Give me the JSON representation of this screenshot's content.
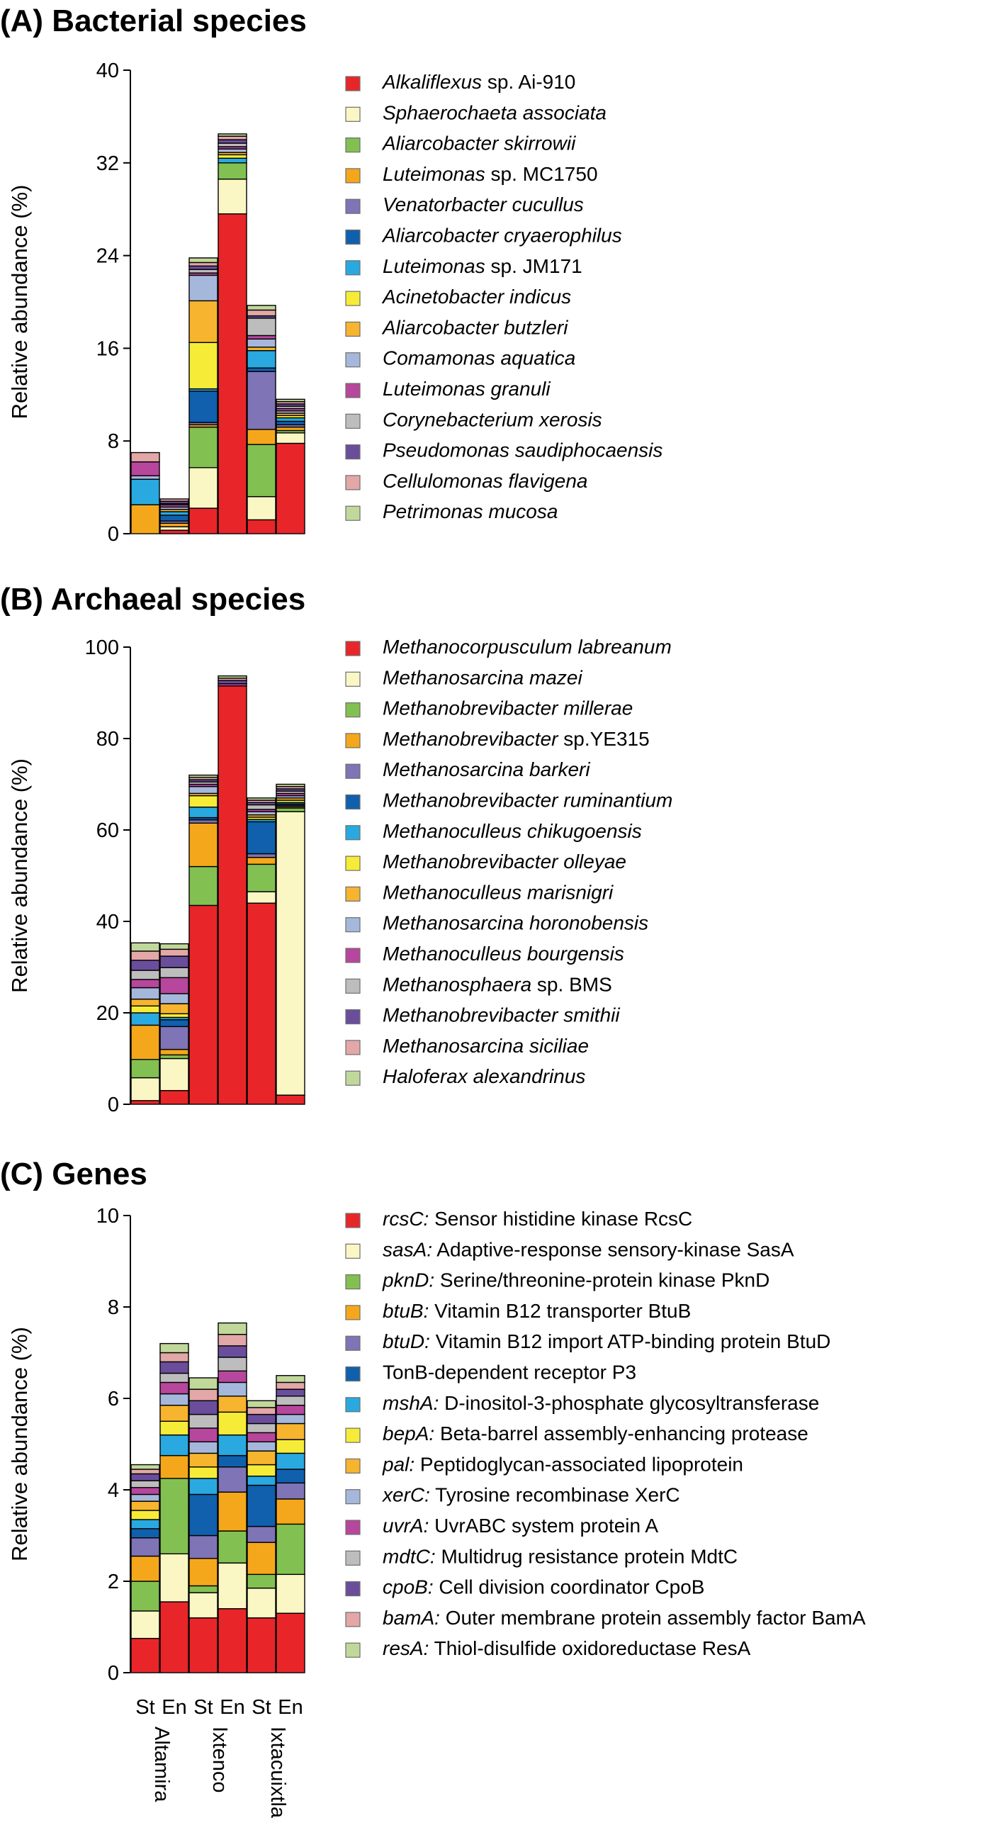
{
  "chart_data": [
    {
      "type": "bar",
      "stacked": true,
      "title": "(A) Bacterial species",
      "ylabel": "Relative abundance (%)",
      "ylim": [
        0,
        40
      ],
      "yticks": [
        "0",
        "8",
        "16",
        "24",
        "32",
        "40"
      ],
      "categories": [
        "Altamira St",
        "Altamira En",
        "Ixtenco St",
        "Ixtenco En",
        "Ixtacuixtla St",
        "Ixtacuixtla En"
      ],
      "series": [
        {
          "name": "Alkaliflexus sp. Ai-910",
          "label": [
            [
              "Alkaliflexus",
              true
            ],
            [
              " sp. Ai-910",
              false
            ]
          ],
          "color": "#e8262a",
          "values": [
            0,
            0.3,
            2.2,
            27.6,
            1.2,
            7.8
          ]
        },
        {
          "name": "Sphaerochaeta associata",
          "label": [
            [
              "Sphaerochaeta associata",
              true
            ]
          ],
          "color": "#fbf7c5",
          "values": [
            0,
            0.3,
            3.5,
            3.0,
            2.0,
            0.9
          ]
        },
        {
          "name": "Aliarcobacter skirrowii",
          "label": [
            [
              "Aliarcobacter skirrowii",
              true
            ]
          ],
          "color": "#82c151",
          "values": [
            0,
            0,
            3.5,
            1.4,
            4.5,
            0.2
          ]
        },
        {
          "name": "Luteimonas sp. MC1750",
          "label": [
            [
              "Luteimonas",
              true
            ],
            [
              " sp. MC1750",
              false
            ]
          ],
          "color": "#f5a71c",
          "values": [
            2.5,
            0.3,
            0.2,
            0,
            1.3,
            0.3
          ]
        },
        {
          "name": "Venatorbacter cucullus",
          "label": [
            [
              "Venatorbacter cucullus",
              true
            ]
          ],
          "color": "#7f74b6",
          "values": [
            0,
            0.2,
            0.2,
            0,
            5.0,
            0.2
          ]
        },
        {
          "name": "Aliarcobacter cryaerophilus",
          "label": [
            [
              "Aliarcobacter cryaerophilus",
              true
            ]
          ],
          "color": "#1060ad",
          "values": [
            0,
            0.5,
            2.7,
            0,
            0.3,
            0.3
          ]
        },
        {
          "name": "Luteimonas sp. JM171",
          "label": [
            [
              "Luteimonas",
              true
            ],
            [
              " sp. JM171",
              false
            ]
          ],
          "color": "#29a9e0",
          "values": [
            2.2,
            0.3,
            0.2,
            0.4,
            1.5,
            0.3
          ]
        },
        {
          "name": "Acinetobacter indicus",
          "label": [
            [
              "Acinetobacter indicus",
              true
            ]
          ],
          "color": "#f6ec38",
          "values": [
            0,
            0,
            4.0,
            0.3,
            0,
            0.2
          ]
        },
        {
          "name": "Aliarcobacter butzleri",
          "label": [
            [
              "Aliarcobacter butzleri",
              true
            ]
          ],
          "color": "#f7b42f",
          "values": [
            0,
            0.2,
            3.6,
            0.2,
            0.3,
            0.2
          ]
        },
        {
          "name": "Comamonas aquatica",
          "label": [
            [
              "Comamonas aquatica",
              true
            ]
          ],
          "color": "#a5b8dc",
          "values": [
            0.3,
            0.2,
            2.2,
            0.3,
            0.7,
            0.2
          ]
        },
        {
          "name": "Luteimonas granuli",
          "label": [
            [
              "Luteimonas granuli",
              true
            ]
          ],
          "color": "#b7479c",
          "values": [
            1.2,
            0.2,
            0.2,
            0.2,
            0.3,
            0.2
          ]
        },
        {
          "name": "Corynebacterium xerosis",
          "label": [
            [
              "Corynebacterium xerosis",
              true
            ]
          ],
          "color": "#bdbdbd",
          "values": [
            0,
            0.1,
            0.3,
            0.3,
            1.5,
            0.2
          ]
        },
        {
          "name": "Pseudomonas saudiphocaensis",
          "label": [
            [
              "Pseudomonas saudiphocaensis",
              true
            ]
          ],
          "color": "#6a4e9c",
          "values": [
            0,
            0.2,
            0.3,
            0.3,
            0.2,
            0.2
          ]
        },
        {
          "name": "Cellulomonas flavigena",
          "label": [
            [
              "Cellulomonas flavigena",
              true
            ]
          ],
          "color": "#e3a7a8",
          "values": [
            0.8,
            0.2,
            0.3,
            0.3,
            0.5,
            0.2
          ]
        },
        {
          "name": "Petrimonas mucosa",
          "label": [
            [
              "Petrimonas mucosa",
              true
            ]
          ],
          "color": "#c1d89b",
          "values": [
            0,
            0,
            0.4,
            0.2,
            0.4,
            0.2
          ]
        }
      ]
    },
    {
      "type": "bar",
      "stacked": true,
      "title": "(B) Archaeal species",
      "ylabel": "Relative abundance (%)",
      "ylim": [
        0,
        100
      ],
      "yticks": [
        "0",
        "20",
        "40",
        "60",
        "80",
        "100"
      ],
      "categories": [
        "Altamira St",
        "Altamira En",
        "Ixtenco St",
        "Ixtenco En",
        "Ixtacuixtla St",
        "Ixtacuixtla En"
      ],
      "series": [
        {
          "name": "Methanocorpusculum labreanum",
          "label": [
            [
              "Methanocorpusculum labreanum",
              true
            ]
          ],
          "color": "#e8262a",
          "values": [
            0.8,
            3,
            43.5,
            91.5,
            44,
            2
          ]
        },
        {
          "name": "Methanosarcina mazei",
          "label": [
            [
              "Methanosarcina mazei",
              true
            ]
          ],
          "color": "#fbf7c5",
          "values": [
            5,
            7,
            0,
            0,
            2.5,
            62
          ]
        },
        {
          "name": "Methanobrevibacter millerae",
          "label": [
            [
              "Methanobrevibacter millerae",
              true
            ]
          ],
          "color": "#82c151",
          "values": [
            4,
            0.8,
            8.5,
            0,
            6,
            0.8
          ]
        },
        {
          "name": "Methanobrevibacter sp.YE315",
          "label": [
            [
              "Methanobrevibacter",
              true
            ],
            [
              " sp.YE315",
              false
            ]
          ],
          "color": "#f5a71c",
          "values": [
            7.5,
            1.2,
            9.5,
            0,
            1.5,
            0.3
          ]
        },
        {
          "name": "Methanosarcina barkeri",
          "label": [
            [
              "Methanosarcina barkeri",
              true
            ]
          ],
          "color": "#7f74b6",
          "values": [
            0,
            5,
            0.7,
            0,
            0.8,
            0.3
          ]
        },
        {
          "name": "Methanobrevibacter ruminantium",
          "label": [
            [
              "Methanobrevibacter ruminantium",
              true
            ]
          ],
          "color": "#1060ad",
          "values": [
            0,
            1.5,
            0.5,
            0,
            7,
            0.3
          ]
        },
        {
          "name": "Methanoculleus chikugoensis",
          "label": [
            [
              "Methanoculleus chikugoensis",
              true
            ]
          ],
          "color": "#29a9e0",
          "values": [
            2.7,
            0.5,
            2.3,
            0,
            0.5,
            0.3
          ]
        },
        {
          "name": "Methanobrevibacter olleyae",
          "label": [
            [
              "Methanobrevibacter olleyae",
              true
            ]
          ],
          "color": "#f6ec38",
          "values": [
            1.5,
            0.8,
            2.5,
            0,
            0.5,
            0.5
          ]
        },
        {
          "name": "Methanoculleus marisnigri",
          "label": [
            [
              "Methanoculleus marisnigri",
              true
            ]
          ],
          "color": "#f7b42f",
          "values": [
            1.5,
            2.2,
            0.5,
            0,
            0.5,
            0.5
          ]
        },
        {
          "name": "Methanosarcina horonobensis",
          "label": [
            [
              "Methanosarcina horonobensis",
              true
            ]
          ],
          "color": "#a5b8dc",
          "values": [
            2.5,
            2.2,
            1.5,
            0,
            0.7,
            0.5
          ]
        },
        {
          "name": "Methanoculleus bourgensis",
          "label": [
            [
              "Methanoculleus bourgensis",
              true
            ]
          ],
          "color": "#b7479c",
          "values": [
            1.8,
            3.5,
            0.5,
            0.5,
            0.5,
            0.5
          ]
        },
        {
          "name": "Methanosphaera sp. BMS",
          "label": [
            [
              "Methanosphaera",
              true
            ],
            [
              " sp. BMS",
              false
            ]
          ],
          "color": "#bdbdbd",
          "values": [
            2,
            2.2,
            0.5,
            0,
            1,
            0.5
          ]
        },
        {
          "name": "Methanobrevibacter smithii",
          "label": [
            [
              "Methanobrevibacter smithii",
              true
            ]
          ],
          "color": "#6a4e9c",
          "values": [
            2.2,
            2.5,
            0.5,
            0.7,
            0.5,
            0.5
          ]
        },
        {
          "name": "Methanosarcina siciliae",
          "label": [
            [
              "Methanosarcina siciliae",
              true
            ]
          ],
          "color": "#e3a7a8",
          "values": [
            2,
            1.5,
            0.5,
            0.5,
            0.5,
            0.5
          ]
        },
        {
          "name": "Haloferax alexandrinus",
          "label": [
            [
              "Haloferax alexandrinus",
              true
            ]
          ],
          "color": "#c1d89b",
          "values": [
            1.8,
            1.2,
            0.5,
            0.5,
            0.5,
            0.5
          ]
        }
      ]
    },
    {
      "type": "bar",
      "stacked": true,
      "title": "(C) Genes",
      "ylabel": "Relative abundance (%)",
      "ylim": [
        0,
        10
      ],
      "yticks": [
        "0",
        "2",
        "4",
        "6",
        "8",
        "10"
      ],
      "categories": [
        "Altamira St",
        "Altamira En",
        "Ixtenco St",
        "Ixtenco En",
        "Ixtacuixtla St",
        "Ixtacuixtla En"
      ],
      "series": [
        {
          "name": "rcsC: Sensor histidine kinase RcsC",
          "label": [
            [
              "rcsC:",
              true
            ],
            [
              " Sensor histidine kinase RcsC",
              false
            ]
          ],
          "color": "#e8262a",
          "values": [
            0.75,
            1.55,
            1.2,
            1.4,
            1.2,
            1.3
          ]
        },
        {
          "name": "sasA: Adaptive-response sensory-kinase SasA",
          "label": [
            [
              "sasA:",
              true
            ],
            [
              " Adaptive-response sensory-kinase SasA",
              false
            ]
          ],
          "color": "#fbf7c5",
          "values": [
            0.6,
            1.05,
            0.55,
            1.0,
            0.65,
            0.85
          ]
        },
        {
          "name": "pknD: Serine/threonine-protein kinase PknD",
          "label": [
            [
              "pknD:",
              true
            ],
            [
              " Serine/threonine-protein kinase PknD",
              false
            ]
          ],
          "color": "#82c151",
          "values": [
            0.65,
            1.65,
            0.15,
            0.7,
            0.3,
            1.1
          ]
        },
        {
          "name": "btuB: Vitamin B12 transporter BtuB",
          "label": [
            [
              "btuB:",
              true
            ],
            [
              " Vitamin B12 transporter BtuB",
              false
            ]
          ],
          "color": "#f5a71c",
          "values": [
            0.55,
            0.5,
            0.6,
            0.85,
            0.7,
            0.55
          ]
        },
        {
          "name": "btuD: Vitamin B12 import ATP-binding protein BtuD",
          "label": [
            [
              "btuD:",
              true
            ],
            [
              " Vitamin B12 import ATP-binding protein BtuD",
              false
            ]
          ],
          "color": "#7f74b6",
          "values": [
            0.4,
            0,
            0.5,
            0.55,
            0.35,
            0.35
          ]
        },
        {
          "name": "TonB-dependent receptor P3",
          "label": [
            [
              "TonB-dependent receptor P3",
              false
            ]
          ],
          "color": "#1060ad",
          "values": [
            0.2,
            0,
            0.9,
            0.25,
            0.9,
            0.3
          ]
        },
        {
          "name": "mshA: D-inositol-3-phosphate glycosyltransferase",
          "label": [
            [
              "mshA:",
              true
            ],
            [
              " D-inositol-3-phosphate glycosyltransferase",
              false
            ]
          ],
          "color": "#29a9e0",
          "values": [
            0.2,
            0.45,
            0.35,
            0.45,
            0.2,
            0.35
          ]
        },
        {
          "name": "bepA: Beta-barrel assembly-enhancing protease",
          "label": [
            [
              "bepA:",
              true
            ],
            [
              " Beta-barrel assembly-enhancing protease",
              false
            ]
          ],
          "color": "#f6ec38",
          "values": [
            0.2,
            0.3,
            0.25,
            0.5,
            0.25,
            0.3
          ]
        },
        {
          "name": "pal: Peptidoglycan-associated lipoprotein",
          "label": [
            [
              "pal:",
              true
            ],
            [
              " Peptidoglycan-associated lipoprotein",
              false
            ]
          ],
          "color": "#f7b42f",
          "values": [
            0.2,
            0.35,
            0.3,
            0.35,
            0.3,
            0.35
          ]
        },
        {
          "name": "xerC: Tyrosine recombinase XerC",
          "label": [
            [
              "xerC:",
              true
            ],
            [
              " Tyrosine recombinase XerC",
              false
            ]
          ],
          "color": "#a5b8dc",
          "values": [
            0.15,
            0.25,
            0.25,
            0.3,
            0.2,
            0.2
          ]
        },
        {
          "name": "uvrA: UvrABC system protein A",
          "label": [
            [
              "uvrA:",
              true
            ],
            [
              " UvrABC system protein A",
              false
            ]
          ],
          "color": "#b7479c",
          "values": [
            0.15,
            0.25,
            0.3,
            0.25,
            0.2,
            0.2
          ]
        },
        {
          "name": "mdtC: Multidrug resistance protein MdtC",
          "label": [
            [
              "mdtC:",
              true
            ],
            [
              " Multidrug resistance protein MdtC",
              false
            ]
          ],
          "color": "#bdbdbd",
          "values": [
            0.15,
            0.2,
            0.3,
            0.3,
            0.2,
            0.2
          ]
        },
        {
          "name": "cpoB: Cell division coordinator CpoB",
          "label": [
            [
              "cpoB:",
              true
            ],
            [
              " Cell division coordinator CpoB",
              false
            ]
          ],
          "color": "#6a4e9c",
          "values": [
            0.15,
            0.25,
            0.3,
            0.25,
            0.2,
            0.15
          ]
        },
        {
          "name": "bamA: Outer membrane protein assembly factor BamA",
          "label": [
            [
              "bamA:",
              true
            ],
            [
              " Outer membrane protein assembly factor BamA",
              false
            ]
          ],
          "color": "#e3a7a8",
          "values": [
            0.1,
            0.2,
            0.25,
            0.25,
            0.15,
            0.15
          ]
        },
        {
          "name": "resA: Thiol-disulfide oxidoreductase ResA",
          "label": [
            [
              "resA:",
              true
            ],
            [
              " Thiol-disulfide oxidoreductase ResA",
              false
            ]
          ],
          "color": "#c1d89b",
          "values": [
            0.1,
            0.2,
            0.25,
            0.25,
            0.15,
            0.15
          ]
        }
      ],
      "x_tick_labels": [
        "St",
        "En",
        "St",
        "En",
        "St",
        "En"
      ],
      "group_labels": [
        "Altamira",
        "Ixtenco",
        "Ixtacuixtla"
      ]
    }
  ]
}
